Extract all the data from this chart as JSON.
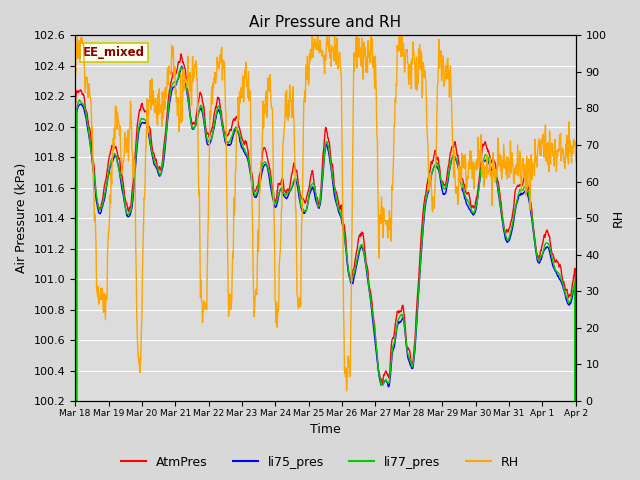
{
  "title": "Air Pressure and RH",
  "ylabel_left": "Air Pressure (kPa)",
  "ylabel_right": "RH",
  "xlabel": "Time",
  "ylim_left": [
    100.2,
    102.6
  ],
  "ylim_right": [
    0,
    100
  ],
  "yticks_left": [
    100.2,
    100.4,
    100.6,
    100.8,
    101.0,
    101.2,
    101.4,
    101.6,
    101.8,
    102.0,
    102.2,
    102.4,
    102.6
  ],
  "yticks_right": [
    0,
    10,
    20,
    30,
    40,
    50,
    60,
    70,
    80,
    90,
    100
  ],
  "xtick_labels": [
    "Mar 18",
    "Mar 19",
    "Mar 20",
    "Mar 21",
    "Mar 22",
    "Mar 23",
    "Mar 24",
    "Mar 25",
    "Mar 26",
    "Mar 27",
    "Mar 28",
    "Mar 29",
    "Mar 30",
    "Mar 31",
    "Apr 1",
    "Apr 2"
  ],
  "legend_labels": [
    "AtmPres",
    "li75_pres",
    "li77_pres",
    "RH"
  ],
  "legend_colors": [
    "#FF0000",
    "#0000FF",
    "#00CC00",
    "#FFA500"
  ],
  "annotation_text": "EE_mixed",
  "annotation_color": "#8B0000",
  "annotation_bg": "#FFFFF0",
  "annotation_edge": "#CCCC00",
  "fig_bg": "#D8D8D8",
  "plot_bg": "#DCDCDC",
  "grid_color": "#FFFFFF",
  "title_fontsize": 11,
  "axis_fontsize": 9,
  "tick_fontsize": 8,
  "legend_fontsize": 9,
  "lw": 1.0
}
